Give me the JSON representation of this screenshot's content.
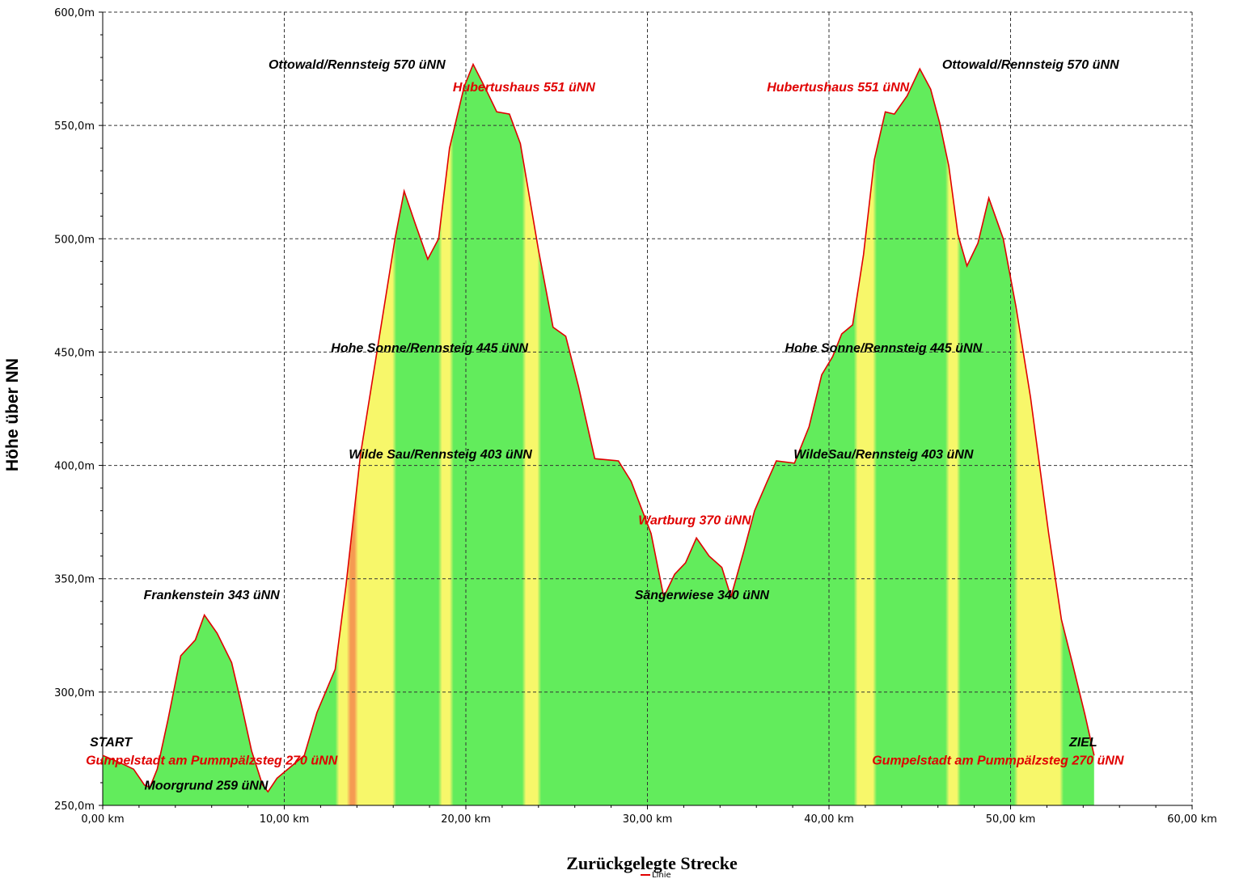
{
  "chart_data": {
    "type": "area",
    "title": "",
    "xlabel": "Zurückgelegte Strecke",
    "ylabel": "Höhe über NN",
    "legend": [
      {
        "label": "Linie",
        "color": "#e00000"
      }
    ],
    "legend_position": "bottom-center",
    "xlim": [
      0,
      60
    ],
    "ylim": [
      250,
      600
    ],
    "grid": true,
    "x_ticks": [
      "0,00 km",
      "10,00 km",
      "20,00 km",
      "30,00 km",
      "40,00 km",
      "50,00 km",
      "60,00 km"
    ],
    "y_ticks": [
      "250,0m",
      "300,0m",
      "350,0m",
      "400,0m",
      "450,0m",
      "500,0m",
      "550,0m",
      "600,0m"
    ],
    "series": [
      {
        "line_color": "#e00000",
        "fill_colors": [
          "#62ec5c",
          "#f7f76a",
          "#f59a52"
        ],
        "points": [
          [
            0,
            272
          ],
          [
            0.9,
            269
          ],
          [
            1.7,
            266
          ],
          [
            2.3,
            259
          ],
          [
            2.6,
            258
          ],
          [
            3.0,
            266
          ],
          [
            3.6,
            288
          ],
          [
            4.3,
            316
          ],
          [
            5.1,
            323
          ],
          [
            5.6,
            334
          ],
          [
            6.3,
            326
          ],
          [
            7.1,
            313
          ],
          [
            7.6,
            296
          ],
          [
            8.2,
            274
          ],
          [
            8.8,
            259
          ],
          [
            9.1,
            256
          ],
          [
            9.6,
            262
          ],
          [
            10.5,
            268
          ],
          [
            11.1,
            272
          ],
          [
            11.8,
            291
          ],
          [
            12.8,
            310
          ],
          [
            13.4,
            347
          ],
          [
            14.2,
            405
          ],
          [
            15.3,
            460
          ],
          [
            16.1,
            500
          ],
          [
            16.6,
            521
          ],
          [
            17.2,
            507
          ],
          [
            17.9,
            491
          ],
          [
            18.5,
            500
          ],
          [
            19.1,
            540
          ],
          [
            19.9,
            567
          ],
          [
            20.4,
            577
          ],
          [
            21.1,
            566
          ],
          [
            21.7,
            556
          ],
          [
            22.4,
            555
          ],
          [
            23.0,
            542
          ],
          [
            24.0,
            495
          ],
          [
            24.8,
            461
          ],
          [
            25.5,
            457
          ],
          [
            26.2,
            435
          ],
          [
            27.1,
            403
          ],
          [
            28.4,
            402
          ],
          [
            29.1,
            393
          ],
          [
            30.2,
            370
          ],
          [
            30.9,
            342
          ],
          [
            31.5,
            352
          ],
          [
            32.1,
            357
          ],
          [
            32.7,
            368
          ],
          [
            33.4,
            360
          ],
          [
            34.1,
            355
          ],
          [
            34.6,
            342
          ],
          [
            35.3,
            362
          ],
          [
            35.9,
            380
          ],
          [
            36.6,
            393
          ],
          [
            37.1,
            402
          ],
          [
            38.1,
            401
          ],
          [
            38.9,
            417
          ],
          [
            39.6,
            440
          ],
          [
            40.2,
            448
          ],
          [
            40.7,
            458
          ],
          [
            41.3,
            462
          ],
          [
            41.9,
            493
          ],
          [
            42.5,
            535
          ],
          [
            43.1,
            556
          ],
          [
            43.6,
            555
          ],
          [
            44.3,
            563
          ],
          [
            45.0,
            575
          ],
          [
            45.6,
            566
          ],
          [
            46.1,
            551
          ],
          [
            46.6,
            532
          ],
          [
            47.1,
            502
          ],
          [
            47.6,
            488
          ],
          [
            48.2,
            498
          ],
          [
            48.8,
            518
          ],
          [
            49.6,
            500
          ],
          [
            50.3,
            470
          ],
          [
            51.1,
            430
          ],
          [
            52.1,
            370
          ],
          [
            52.8,
            332
          ],
          [
            53.4,
            313
          ],
          [
            54.1,
            290
          ],
          [
            54.6,
            272
          ]
        ]
      }
    ],
    "annotations": [
      {
        "text": "START",
        "x": 0.45,
        "y": 276,
        "color": "#000000"
      },
      {
        "text": "Gumpelstadt am Pummpälzsteg 270 üNN",
        "x": 6.0,
        "y": 268,
        "color": "#e00000"
      },
      {
        "text": "Moorgrund 259 üNN",
        "x": 5.7,
        "y": 257,
        "color": "#000000"
      },
      {
        "text": "Frankenstein 343 üNN",
        "x": 6.0,
        "y": 341,
        "color": "#000000"
      },
      {
        "text": "Ottowald/Rennsteig 570 üNN",
        "x": 14.0,
        "y": 575,
        "color": "#000000"
      },
      {
        "text": "Hubertushaus 551 üNN",
        "x": 23.2,
        "y": 565,
        "color": "#e00000"
      },
      {
        "text": "Hohe Sonne/Rennsteig  445 üNN",
        "x": 18.0,
        "y": 450,
        "color": "#000000"
      },
      {
        "text": "Wilde Sau/Rennsteig  403 üNN",
        "x": 18.6,
        "y": 403,
        "color": "#000000"
      },
      {
        "text": "Wartburg 370 üNN",
        "x": 32.6,
        "y": 374,
        "color": "#e00000"
      },
      {
        "text": "Sängerwiese 340 üNN",
        "x": 33.0,
        "y": 341,
        "color": "#000000"
      },
      {
        "text": "Hubertushaus 551 üNN",
        "x": 40.5,
        "y": 565,
        "color": "#e00000"
      },
      {
        "text": "Ottowald/Rennsteig 570 üNN",
        "x": 51.1,
        "y": 575,
        "color": "#000000"
      },
      {
        "text": "Hohe Sonne/Rennsteig  445 üNN",
        "x": 43.0,
        "y": 450,
        "color": "#000000"
      },
      {
        "text": "WildeSau/Rennsteig  403 üNN",
        "x": 43.0,
        "y": 403,
        "color": "#000000"
      },
      {
        "text": "ZIEL",
        "x": 54.0,
        "y": 276,
        "color": "#000000"
      },
      {
        "text": "Gumpelstadt am Pummpälzsteg 270 üNN",
        "x": 49.3,
        "y": 268,
        "color": "#e00000"
      }
    ]
  }
}
